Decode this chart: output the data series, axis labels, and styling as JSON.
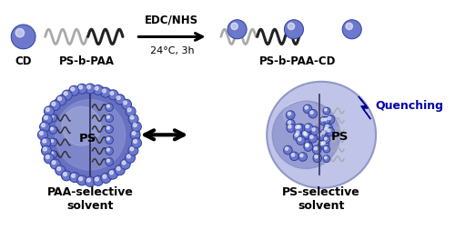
{
  "bg_color": "#ffffff",
  "cd_color": "#6b78cc",
  "cd_edge": "#3040a0",
  "cd_highlight": "#ffffff",
  "reaction_text1": "EDC/NHS",
  "reaction_text2": "24°C, 3h",
  "label_cd": "CD",
  "label_ps_b_paa": "PS-b-PAA",
  "label_product": "PS-b-PAA-CD",
  "label_paa_solvent": "PAA-selective\nsolvent",
  "label_ps_solvent": "PS-selective\nsolvent",
  "label_ps_left": "PS",
  "label_ps_right": "PS",
  "quenching_text": "Quenching",
  "quenching_color": "#0000aa",
  "paa_chain_color": "#999999",
  "ps_chain_color": "#222222",
  "micelle_left_outer": "#7880cc",
  "micelle_left_inner": "#9098d0",
  "micelle_right_outer": "#c8ccee",
  "micelle_right_inner": "#8890cc"
}
